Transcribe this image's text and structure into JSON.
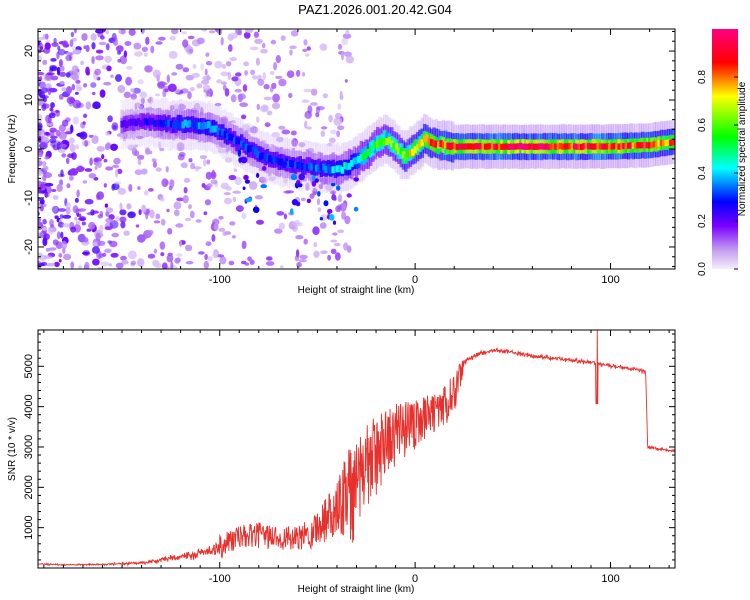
{
  "title": "PAZ1.2026.001.20.42.G04",
  "chart_data": [
    {
      "type": "heatmap",
      "xlabel": "Height of straight line (km)",
      "ylabel": "Frequency (Hz)",
      "xlim": [
        -193,
        133
      ],
      "ylim": [
        -24.5,
        24.5
      ],
      "xticks": [
        -100,
        0,
        100
      ],
      "xtick_labels": [
        "-100",
        "0",
        "100"
      ],
      "yticks": [
        -20,
        -10,
        0,
        10,
        20
      ],
      "ytick_labels": [
        "-20",
        "-10",
        "0",
        "10",
        "20"
      ],
      "colorbar": {
        "label": "Normalized spectral amplitude",
        "range": [
          0,
          1
        ],
        "ticks": [
          0.0,
          0.2,
          0.4,
          0.6,
          0.8
        ],
        "tick_labels": [
          "0.0",
          "0.2",
          "0.4",
          "0.6",
          "0.8"
        ]
      },
      "ridge": {
        "x": [
          -190,
          -170,
          -150,
          -135,
          -125,
          -115,
          -105,
          -95,
          -85,
          -75,
          -65,
          -55,
          -45,
          -38,
          -30,
          -25,
          -20,
          -15,
          -10,
          -5,
          0,
          5,
          10,
          20,
          40,
          60,
          80,
          100,
          120,
          133
        ],
        "freq": [
          4,
          4.5,
          5,
          5.5,
          5,
          5,
          4.5,
          2.5,
          0,
          -2,
          -3,
          -3.5,
          -4,
          -4,
          -2.5,
          -1,
          1,
          2,
          0.5,
          -1.5,
          0,
          2,
          1,
          0.5,
          0.5,
          0.5,
          0.5,
          0.5,
          0.8,
          1.5
        ],
        "amplitude": [
          0.1,
          0.15,
          0.2,
          0.25,
          0.3,
          0.35,
          0.35,
          0.3,
          0.3,
          0.3,
          0.3,
          0.3,
          0.35,
          0.4,
          0.45,
          0.5,
          0.55,
          0.6,
          0.6,
          0.65,
          0.7,
          0.75,
          0.8,
          0.85,
          0.9,
          0.9,
          0.9,
          0.9,
          0.85,
          0.8
        ]
      }
    },
    {
      "type": "line",
      "xlabel": "Height of straight line (km)",
      "ylabel": "SNR (10 * v/v)",
      "xlim": [
        -193,
        133
      ],
      "ylim": [
        0,
        5900
      ],
      "xticks": [
        -100,
        0,
        100
      ],
      "xtick_labels": [
        "-100",
        "0",
        "100"
      ],
      "yticks": [
        1000,
        2000,
        3000,
        4000,
        5000
      ],
      "ytick_labels": [
        "1000",
        "2000",
        "3000",
        "4000",
        "5000"
      ],
      "series": [
        {
          "name": "SNR",
          "color": "#e8302c",
          "x": [
            -193,
            -180,
            -160,
            -140,
            -125,
            -110,
            -100,
            -90,
            -80,
            -70,
            -60,
            -50,
            -40,
            -35,
            -30,
            -25,
            -20,
            -15,
            -10,
            -5,
            0,
            5,
            10,
            15,
            20,
            25,
            30,
            40,
            50,
            60,
            70,
            80,
            90,
            95,
            100,
            110,
            115,
            118,
            119,
            125,
            133
          ],
          "y": [
            100,
            80,
            90,
            120,
            250,
            350,
            500,
            700,
            750,
            700,
            650,
            900,
            1400,
            1900,
            2300,
            2700,
            3000,
            3300,
            3500,
            3600,
            3700,
            3850,
            4000,
            4150,
            4400,
            5100,
            5250,
            5400,
            5350,
            5250,
            5200,
            5150,
            5100,
            5050,
            5000,
            4950,
            4900,
            4850,
            3000,
            2950,
            2900
          ],
          "noise": [
            30,
            25,
            30,
            60,
            120,
            180,
            350,
            300,
            320,
            300,
            300,
            500,
            700,
            800,
            700,
            650,
            600,
            500,
            450,
            400,
            350,
            300,
            280,
            300,
            300,
            150,
            100,
            90,
            80,
            80,
            80,
            80,
            80,
            80,
            80,
            70,
            70,
            60,
            60,
            50,
            50
          ]
        }
      ]
    }
  ]
}
